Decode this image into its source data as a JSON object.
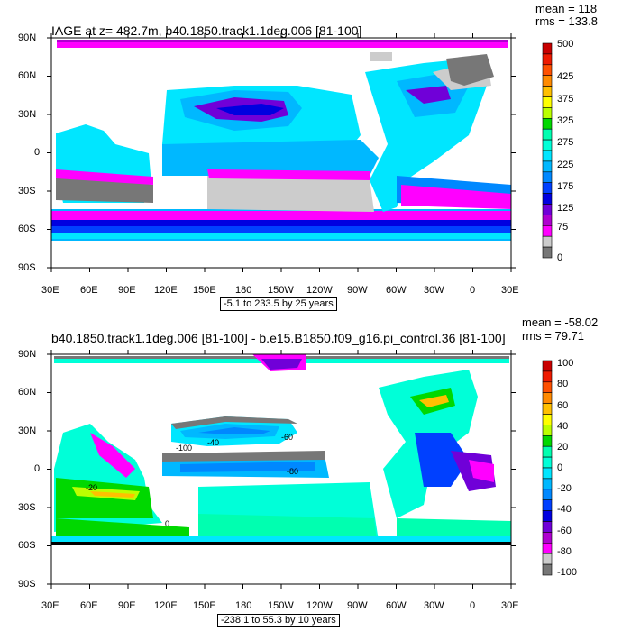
{
  "colors": {
    "ocean_bg": "#ffffff",
    "land": "#ffffff",
    "frame": "#000000"
  },
  "panel1": {
    "title": "IAGE at z= 482.7m, b40.1850.track1.1deg.006 [81-100]",
    "mean": "mean = 118",
    "rms": "rms = 133.8",
    "range_text": "-5.1 to 233.5 by 25 years",
    "lat_labels": [
      "90N",
      "60N",
      "30N",
      "0",
      "30S",
      "60S",
      "90S"
    ],
    "lon_labels": [
      "30E",
      "60E",
      "90E",
      "120E",
      "150E",
      "180",
      "150W",
      "120W",
      "90W",
      "60W",
      "30W",
      "0",
      "30E"
    ],
    "colorbar_labels": [
      "500",
      "425",
      "375",
      "325",
      "275",
      "225",
      "175",
      "125",
      "75",
      "0"
    ],
    "colorbar_colors": [
      "#c80000",
      "#ee1a00",
      "#ff5000",
      "#ff8a00",
      "#ffc000",
      "#ffff00",
      "#bbff00",
      "#00d800",
      "#00ffb0",
      "#00ffd8",
      "#00e6ff",
      "#00b8ff",
      "#0088ff",
      "#0040ff",
      "#0000e0",
      "#7000d8",
      "#b000d0",
      "#ff00ff",
      "#cccccc",
      "#777777"
    ]
  },
  "panel2": {
    "title": "b40.1850.track1.1deg.006 [81-100] - b.e15.B1850.f09_g16.pi_control.36 [81-100]",
    "mean": "mean = -58.02",
    "rms": "rms = 79.71",
    "range_text": "-238.1 to 55.3 by 10 years",
    "lat_labels": [
      "90N",
      "60N",
      "30N",
      "0",
      "30S",
      "60S",
      "90S"
    ],
    "lon_labels": [
      "30E",
      "60E",
      "90E",
      "120E",
      "150E",
      "180",
      "150W",
      "120W",
      "90W",
      "60W",
      "30W",
      "0",
      "30E"
    ],
    "colorbar_labels": [
      "100",
      "80",
      "60",
      "40",
      "20",
      "0",
      "-20",
      "-40",
      "-60",
      "-80",
      "-100"
    ],
    "colorbar_colors": [
      "#c80000",
      "#ee1a00",
      "#ff5000",
      "#ff8a00",
      "#ffc000",
      "#ffff00",
      "#bbff00",
      "#00d800",
      "#00ffb0",
      "#00ffd8",
      "#00e6ff",
      "#00b8ff",
      "#0088ff",
      "#0040ff",
      "#0000e0",
      "#7000d8",
      "#b000d0",
      "#ff00ff",
      "#cccccc",
      "#777777"
    ],
    "contour_labels": [
      "-100",
      "-80",
      "-60",
      "-40",
      "-20",
      "0"
    ]
  }
}
